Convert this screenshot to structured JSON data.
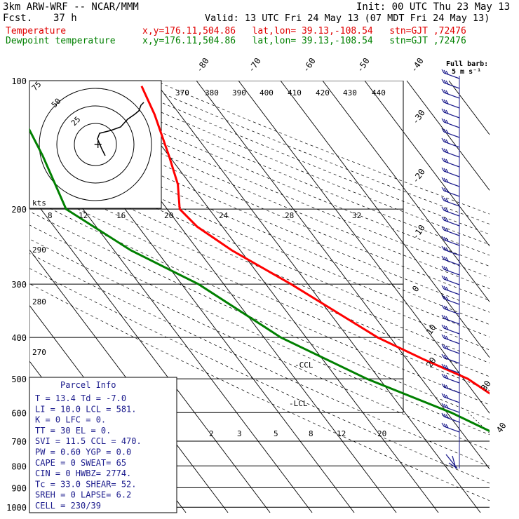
{
  "header": {
    "model": "3km ARW-WRF -- NCAR/MMM",
    "init": "Init: 00 UTC Thu 23 May 13",
    "fcst_label": "Fcst.",
    "fcst_value": "37 h",
    "valid": "Valid: 13 UTC Fri 24 May 13 (07 MDT Fri 24 May 13)",
    "temp_label": "Temperature",
    "temp_loc": "x,y=176.11,504.86   lat,lon= 39.13,-108.54   stn=GJT ,72476",
    "dew_label": "Dewpoint temperature",
    "dew_loc": "x,y=176.11,504.86   lat,lon= 39.13,-108.54   stn=GJT ,72476",
    "barb_title": "Full barb:",
    "barb_units": "5 m s⁻¹"
  },
  "colors": {
    "temperature": "#ff0000",
    "dewpoint": "#008000",
    "panel_text": "#1a1a8c",
    "wind": "#1a1a8c"
  },
  "chart_data": {
    "type": "line",
    "title": "",
    "xlabel": "",
    "ylabel": "",
    "y_scale": "log-pressure",
    "pressure_levels": [
      "100",
      "200",
      "300",
      "400",
      "500",
      "600",
      "700",
      "800",
      "900",
      "1000"
    ],
    "isotherm_labels": [
      "-80",
      "-70",
      "-60",
      "-50",
      "-40",
      "-30",
      "-20",
      "-10",
      "0",
      "10",
      "20",
      "30",
      "40"
    ],
    "theta_labels": [
      "370",
      "380",
      "390",
      "400",
      "410",
      "420",
      "430",
      "440",
      "290",
      "280",
      "270"
    ],
    "hodograph_speed_labels": [
      "8",
      "12",
      "16",
      "20",
      "24",
      "28",
      "32"
    ],
    "hodograph_unit": "kts",
    "hodograph_ring_labels": [
      "75",
      "50",
      "25"
    ],
    "mixing_ratio_labels": [
      "2",
      "3",
      "5",
      "8",
      "12",
      "20"
    ],
    "lcl_label": "-LCL",
    "ccl_label": "-CCL",
    "series": [
      {
        "name": "Temperature",
        "points": [
          [
            -34,
            103
          ],
          [
            -36,
            120
          ],
          [
            -40,
            150
          ],
          [
            -43,
            175
          ],
          [
            -47,
            200
          ],
          [
            -46,
            220
          ],
          [
            -42,
            250
          ],
          [
            -34,
            300
          ],
          [
            -23,
            400
          ],
          [
            -16,
            450
          ],
          [
            -9,
            500
          ],
          [
            -3,
            600
          ],
          [
            3,
            700
          ],
          [
            8,
            780
          ],
          [
            13.4,
            825
          ]
        ]
      },
      {
        "name": "Dewpoint temperature",
        "points": [
          [
            -66,
            103
          ],
          [
            -70,
            150
          ],
          [
            -74,
            200
          ],
          [
            -66,
            250
          ],
          [
            -56,
            300
          ],
          [
            -46,
            400
          ],
          [
            -33,
            500
          ],
          [
            -19,
            600
          ],
          [
            -10,
            700
          ],
          [
            -8,
            750
          ],
          [
            -12,
            800
          ],
          [
            -7,
            825
          ]
        ]
      }
    ]
  },
  "panel": {
    "title": "Parcel Info",
    "rows": [
      [
        "T   =  13.4  Td =  -7.0"
      ],
      [
        "LI  =  10.0  LCL =  581."
      ],
      [
        "K   =     0  LFC =    0."
      ],
      [
        "TT  =    30  EL  =    0."
      ],
      [
        "SVI =  11.5  CCL =  470."
      ],
      [
        "PW  =  0.60  YGP =  0.0"
      ],
      [
        "CAPE =     0  SWEAT=  65"
      ],
      [
        "CIN  =     0  HWBZ= 2774."
      ],
      [
        "Tc   =  33.0  SHEAR=  52."
      ],
      [
        "SREH =     0  LAPSE=  6.2"
      ],
      [
        "CELL = 230/39"
      ]
    ]
  }
}
